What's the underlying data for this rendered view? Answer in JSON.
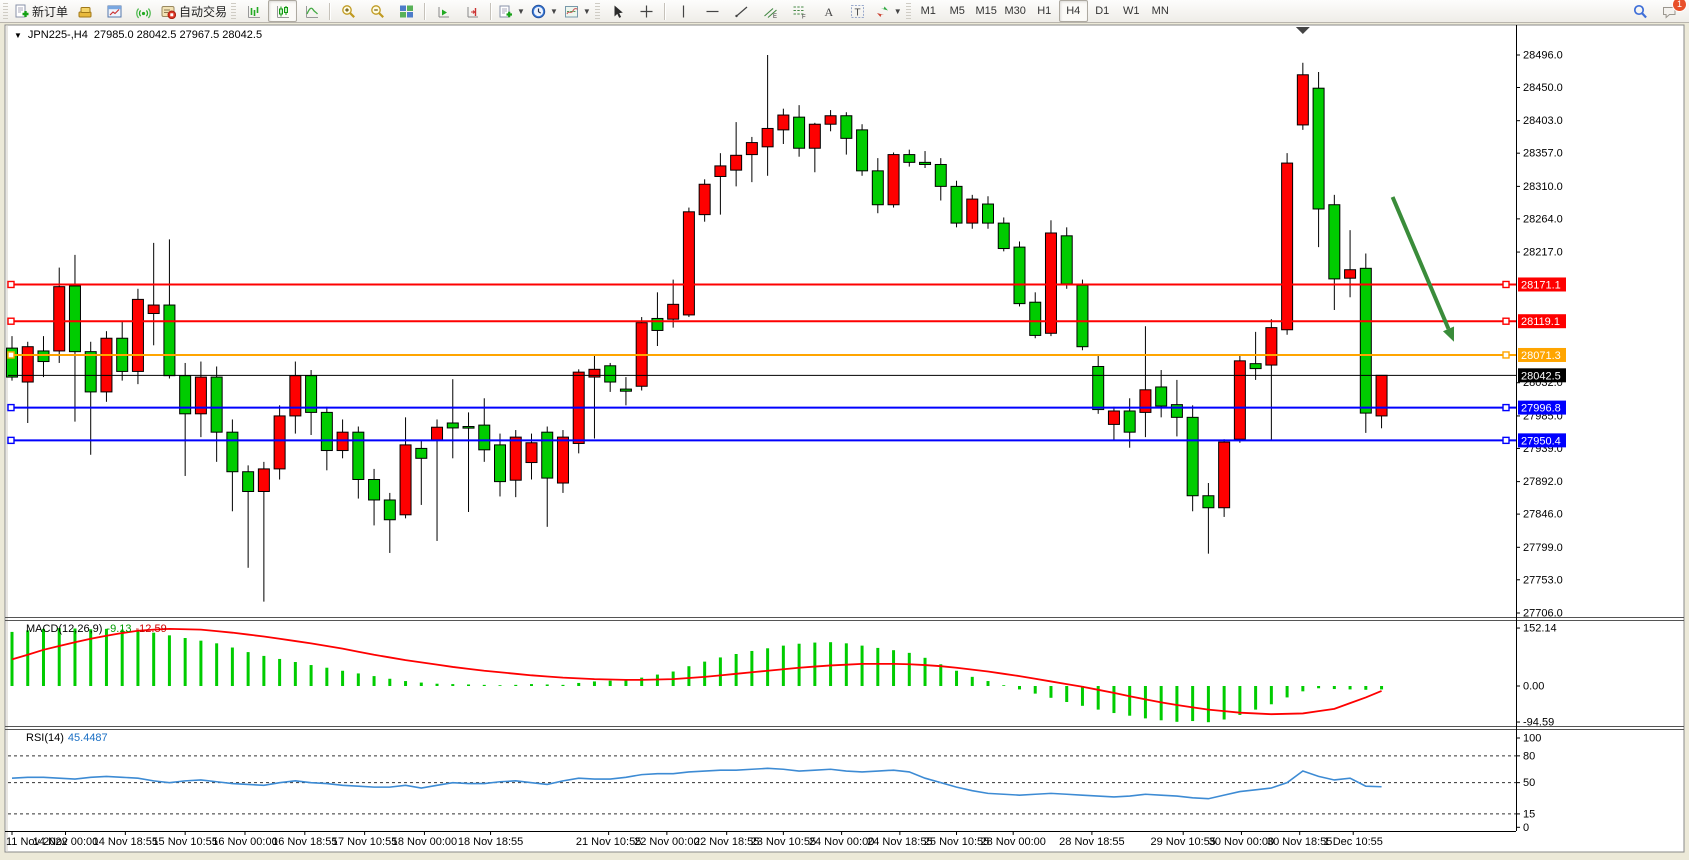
{
  "toolbar": {
    "groups": [
      {
        "buttons": [
          {
            "name": "new-order-button",
            "icon": "new-order-icon",
            "label": "新订单"
          },
          {
            "name": "market-button",
            "icon": "gold-icon"
          },
          {
            "name": "open-chart-button",
            "icon": "chart-window-icon"
          },
          {
            "name": "signals-button",
            "icon": "signal-icon"
          },
          {
            "name": "autotrading-button",
            "icon": "autotrade-icon",
            "label": "自动交易"
          }
        ]
      },
      {
        "buttons": [
          {
            "name": "bar-chart-button",
            "icon": "bars-icon"
          },
          {
            "name": "candlestick-chart-button",
            "icon": "candles-icon",
            "pressed": true
          },
          {
            "name": "line-chart-button",
            "icon": "linechart-icon"
          },
          {
            "sep": true
          },
          {
            "name": "zoom-in-button",
            "icon": "zoom-in-icon"
          },
          {
            "name": "zoom-out-button",
            "icon": "zoom-out-icon"
          },
          {
            "name": "tile-windows-button",
            "icon": "tiles-icon"
          },
          {
            "sep": true
          },
          {
            "name": "auto-scroll-button",
            "icon": "autoscroll-icon"
          },
          {
            "name": "chart-shift-button",
            "icon": "chartshift-icon"
          },
          {
            "sep": true
          },
          {
            "name": "new-chart-button",
            "icon": "newchart-icon",
            "dropdown": true
          },
          {
            "name": "periods-button",
            "icon": "clock-icon",
            "dropdown": true
          },
          {
            "name": "templates-button",
            "icon": "template-icon",
            "dropdown": true
          }
        ]
      },
      {
        "buttons": [
          {
            "name": "cursor-button",
            "icon": "cursor-icon"
          },
          {
            "name": "crosshair-button",
            "icon": "crosshair-icon"
          },
          {
            "sep": true
          },
          {
            "name": "vertical-line-button",
            "icon": "vline-icon"
          },
          {
            "name": "horizontal-line-button",
            "icon": "hline-icon"
          },
          {
            "name": "trendline-button",
            "icon": "trend-icon"
          },
          {
            "name": "channel-button",
            "icon": "channel-icon"
          },
          {
            "name": "fibonacci-button",
            "icon": "fibo-icon"
          },
          {
            "name": "text-button",
            "icon": "text-a-icon"
          },
          {
            "name": "text-label-button",
            "icon": "text-t-icon"
          },
          {
            "name": "arrows-button",
            "icon": "arrows-icon",
            "dropdown": true
          }
        ]
      }
    ],
    "timeframes": [
      {
        "label": "M1"
      },
      {
        "label": "M5"
      },
      {
        "label": "M15"
      },
      {
        "label": "M30"
      },
      {
        "label": "H1"
      },
      {
        "label": "H4",
        "active": true
      },
      {
        "label": "D1"
      },
      {
        "label": "W1"
      },
      {
        "label": "MN"
      }
    ],
    "right_buttons": [
      {
        "name": "search-button",
        "icon": "search-icon"
      },
      {
        "name": "notifications-button",
        "icon": "chat-icon",
        "badge": "1"
      }
    ]
  },
  "chart": {
    "symbol_period": "JPN225-,H4",
    "ohlc_line": "27985.0 28042.5 27967.5 28042.5"
  },
  "chart_data": {
    "type": "candlestick",
    "title": "JPN225-,H4",
    "current_ohlc": {
      "open": 27985.0,
      "high": 28042.5,
      "low": 27967.5,
      "close": 28042.5
    },
    "up_color": "#fe0000",
    "down_color": "#00cc00",
    "ylim": [
      27680,
      28530
    ],
    "price_ticks": [
      28496.0,
      28450.0,
      28403.0,
      28357.0,
      28310.0,
      28264.0,
      28217.0,
      28032.0,
      27985.0,
      27939.0,
      27892.0,
      27846.0,
      27799.0,
      27753.0,
      27706.0
    ],
    "levels": [
      {
        "price": 28171.1,
        "color": "#fe0000",
        "width": 2,
        "label": "28171.1"
      },
      {
        "price": 28119.1,
        "color": "#fe0000",
        "width": 2,
        "label": "28119.1"
      },
      {
        "price": 28071.3,
        "color": "#ffa500",
        "width": 2,
        "label": "28071.3"
      },
      {
        "price": 28042.5,
        "color": "#000000",
        "width": 1,
        "label": "28042.5",
        "bid": true
      },
      {
        "price": 27996.8,
        "color": "#0000fe",
        "width": 2,
        "label": "27996.8"
      },
      {
        "price": 27950.4,
        "color": "#0000fe",
        "width": 2,
        "label": "27950.4"
      }
    ],
    "candles": [
      [
        28081,
        28098,
        28035,
        28040
      ],
      [
        28033,
        28090,
        27975,
        28083
      ],
      [
        28077,
        28098,
        28040,
        28062
      ],
      [
        28077,
        28195,
        28060,
        28168
      ],
      [
        28169,
        28213,
        27977,
        28076
      ],
      [
        28076,
        28090,
        27930,
        28019
      ],
      [
        28019,
        28105,
        28005,
        28095
      ],
      [
        28095,
        28120,
        28035,
        28048
      ],
      [
        28048,
        28165,
        28030,
        28150
      ],
      [
        28130,
        28230,
        28085,
        28142
      ],
      [
        28142,
        28235,
        28038,
        28042
      ],
      [
        28042,
        28060,
        27900,
        27988
      ],
      [
        27988,
        28062,
        27955,
        28040
      ],
      [
        28040,
        28055,
        27920,
        27962
      ],
      [
        27962,
        27980,
        27850,
        27906
      ],
      [
        27906,
        27915,
        27770,
        27878
      ],
      [
        27878,
        27920,
        27722,
        27910
      ],
      [
        27910,
        28000,
        27895,
        27985
      ],
      [
        27985,
        28062,
        27960,
        28042
      ],
      [
        28042,
        28050,
        27958,
        27990
      ],
      [
        27990,
        27998,
        27908,
        27936
      ],
      [
        27936,
        27980,
        27925,
        27962
      ],
      [
        27962,
        27970,
        27868,
        27895
      ],
      [
        27895,
        27910,
        27830,
        27866
      ],
      [
        27866,
        27876,
        27791,
        27838
      ],
      [
        27845,
        27983,
        27840,
        27944
      ],
      [
        27939,
        27950,
        27859,
        27925
      ],
      [
        27951,
        27980,
        27808,
        27969
      ],
      [
        27975,
        28037,
        27925,
        27968
      ],
      [
        27970,
        27990,
        27849,
        27968
      ],
      [
        27972,
        28010,
        27920,
        27937
      ],
      [
        27944,
        27960,
        27871,
        27892
      ],
      [
        27894,
        27965,
        27870,
        27955
      ],
      [
        27919,
        27960,
        27895,
        27947
      ],
      [
        27962,
        27970,
        27828,
        27897
      ],
      [
        27890,
        27965,
        27876,
        27955
      ],
      [
        27946,
        28051,
        27932,
        28047
      ],
      [
        28040,
        28071,
        27953,
        28051
      ],
      [
        28056,
        28060,
        28019,
        28033
      ],
      [
        28023,
        28040,
        28000,
        28020
      ],
      [
        28027,
        28125,
        28021,
        28117
      ],
      [
        28123,
        28160,
        28084,
        28106
      ],
      [
        28122,
        28178,
        28110,
        28143
      ],
      [
        28128,
        28280,
        28125,
        28274
      ],
      [
        28270,
        28320,
        28260,
        28313
      ],
      [
        28324,
        28357,
        28270,
        28339
      ],
      [
        28333,
        28401,
        28310,
        28354
      ],
      [
        28355,
        28380,
        28316,
        28372
      ],
      [
        28366,
        28496,
        28325,
        28392
      ],
      [
        28390,
        28420,
        28370,
        28411
      ],
      [
        28408,
        28425,
        28352,
        28364
      ],
      [
        28364,
        28400,
        28330,
        28398
      ],
      [
        28398,
        28418,
        28388,
        28410
      ],
      [
        28410,
        28415,
        28355,
        28378
      ],
      [
        28390,
        28398,
        28325,
        28332
      ],
      [
        28332,
        28350,
        28272,
        28284
      ],
      [
        28284,
        28358,
        28280,
        28355
      ],
      [
        28355,
        28362,
        28338,
        28344
      ],
      [
        28344,
        28360,
        28336,
        28341
      ],
      [
        28341,
        28350,
        28290,
        28310
      ],
      [
        28310,
        28318,
        28252,
        28258
      ],
      [
        28258,
        28298,
        28250,
        28292
      ],
      [
        28285,
        28296,
        28250,
        28258
      ],
      [
        28258,
        28266,
        28218,
        28222
      ],
      [
        28224,
        28232,
        28140,
        28144
      ],
      [
        28146,
        28160,
        28095,
        28099
      ],
      [
        28102,
        28262,
        28098,
        28244
      ],
      [
        28240,
        28252,
        28165,
        28172
      ],
      [
        28170,
        28178,
        28078,
        28083
      ],
      [
        28055,
        28070,
        27988,
        27994
      ],
      [
        27973,
        27998,
        27950,
        27992
      ],
      [
        27992,
        28010,
        27940,
        27962
      ],
      [
        27990,
        28112,
        27955,
        28022
      ],
      [
        28026,
        28050,
        27983,
        27999
      ],
      [
        28001,
        28036,
        27956,
        27983
      ],
      [
        27983,
        28000,
        27850,
        27872
      ],
      [
        27872,
        27890,
        27790,
        27855
      ],
      [
        27855,
        27952,
        27842,
        27948
      ],
      [
        27952,
        28070,
        27947,
        28063
      ],
      [
        28059,
        28104,
        28036,
        28052
      ],
      [
        28057,
        28122,
        27950,
        28110
      ],
      [
        28107,
        28357,
        28100,
        28343
      ],
      [
        28397,
        28485,
        28390,
        28468
      ],
      [
        28449,
        28472,
        28224,
        28278
      ],
      [
        28284,
        28298,
        28135,
        28179
      ],
      [
        28180,
        28248,
        28153,
        28192
      ],
      [
        28194,
        28215,
        27961,
        27989
      ],
      [
        27985,
        28042.5,
        27967.5,
        28042.5
      ]
    ],
    "time_labels": [
      {
        "t": "11 Nov 2022",
        "i": 0.0,
        "align": "start"
      },
      {
        "t": "14 Nov 00:00",
        "i": 3.4
      },
      {
        "t": "14 Nov 18:55",
        "i": 7.2
      },
      {
        "t": "15 Nov 10:55",
        "i": 11.0
      },
      {
        "t": "16 Nov 00:00",
        "i": 14.8
      },
      {
        "t": "16 Nov 18:55",
        "i": 18.6
      },
      {
        "t": "17 Nov 10:55",
        "i": 22.4
      },
      {
        "t": "18 Nov 00:00",
        "i": 26.2
      },
      {
        "t": "18 Nov 18:55",
        "i": 30.4
      },
      {
        "t": "21 Nov 10:55",
        "i": 37.9
      },
      {
        "t": "22 Nov 00:00",
        "i": 41.6
      },
      {
        "t": "22 Nov 18:55",
        "i": 45.4
      },
      {
        "t": "23 Nov 10:55",
        "i": 49.0
      },
      {
        "t": "24 Nov 00:00",
        "i": 52.7
      },
      {
        "t": "24 Nov 18:55",
        "i": 56.4
      },
      {
        "t": "25 Nov 10:55",
        "i": 60.0
      },
      {
        "t": "28 Nov 00:00",
        "i": 63.6
      },
      {
        "t": "28 Nov 18:55",
        "i": 68.6
      },
      {
        "t": "29 Nov 10:55",
        "i": 74.4
      },
      {
        "t": "30 Nov 00:00",
        "i": 78.1
      },
      {
        "t": "30 Nov 18:55",
        "i": 81.8
      },
      {
        "t": "1 Dec 10:55",
        "i": 85.2
      }
    ],
    "macd": {
      "label": "MACD(12,26,9)",
      "value_main": "-9.13",
      "value_signal": "-12.59",
      "scale_ticks": [
        152.14,
        0.0,
        -94.59
      ],
      "hist_color": "#00cc00",
      "signal_color": "#fe0000",
      "histogram": [
        142,
        146,
        150,
        152,
        151,
        149,
        150,
        148,
        145,
        140,
        133,
        126,
        119,
        112,
        101,
        89,
        79,
        71,
        63,
        55,
        48,
        40,
        33,
        26,
        19,
        13,
        9,
        6,
        5,
        4,
        3,
        2,
        3,
        5,
        4,
        3,
        8,
        12,
        14,
        15,
        22,
        30,
        38,
        52,
        64,
        75,
        84,
        92,
        99,
        106,
        111,
        114,
        115,
        112,
        106,
        100,
        94,
        87,
        74,
        57,
        40,
        24,
        13,
        2,
        -9,
        -20,
        -31,
        -42,
        -52,
        -62,
        -71,
        -78,
        -85,
        -90,
        -94,
        -92,
        -95,
        -88,
        -76,
        -62,
        -48,
        -30,
        -14,
        -6,
        -8,
        -9,
        -10,
        -9
      ],
      "signal": [
        70,
        82,
        95,
        105,
        115,
        124,
        132,
        139,
        145,
        148,
        150,
        149,
        148,
        144,
        140,
        135,
        130,
        124,
        118,
        112,
        105,
        98,
        90,
        82,
        75,
        68,
        62,
        56,
        50,
        45,
        40,
        36,
        32,
        28,
        25,
        22,
        20,
        18,
        17,
        16,
        16,
        17,
        18,
        21,
        24,
        28,
        32,
        36,
        40,
        44,
        48,
        51,
        54,
        56,
        58,
        58,
        58,
        57,
        55,
        52,
        48,
        43,
        38,
        32,
        26,
        19,
        12,
        5,
        -2,
        -10,
        -18,
        -27,
        -35,
        -43,
        -50,
        -56,
        -62,
        -66,
        -70,
        -72,
        -74,
        -73,
        -72,
        -66,
        -60,
        -45,
        -30,
        -13
      ]
    },
    "rsi": {
      "label": "RSI(14)",
      "value": "45.4487",
      "scale_ticks": [
        100,
        80,
        50,
        15,
        0
      ],
      "dashed_levels": [
        80,
        50,
        15
      ],
      "line_color": "#3d8bd4",
      "series": [
        55,
        56,
        56,
        55,
        54,
        56,
        57,
        56,
        55,
        52,
        50,
        52,
        53,
        51,
        49,
        48,
        47,
        50,
        52,
        50,
        49,
        47,
        46,
        45,
        45,
        47,
        44,
        47,
        50,
        49,
        49,
        51,
        52,
        50,
        48,
        52,
        55,
        54,
        54,
        56,
        59,
        60,
        60,
        62,
        63,
        64,
        64,
        65,
        66,
        65,
        63,
        64,
        65,
        63,
        62,
        63,
        64,
        62,
        55,
        50,
        45,
        41,
        38,
        37,
        36,
        37,
        38,
        37,
        36,
        35,
        34,
        35,
        37,
        36,
        35,
        33,
        32,
        36,
        40,
        42,
        44,
        50,
        63,
        57,
        53,
        55,
        46,
        45.4
      ]
    },
    "annotations": {
      "arrow": {
        "i1": 87.7,
        "p1": 28295,
        "i2": 91.6,
        "p2": 28090,
        "color": "#3a8c3a"
      },
      "shift_marker_i": 82.0
    }
  }
}
